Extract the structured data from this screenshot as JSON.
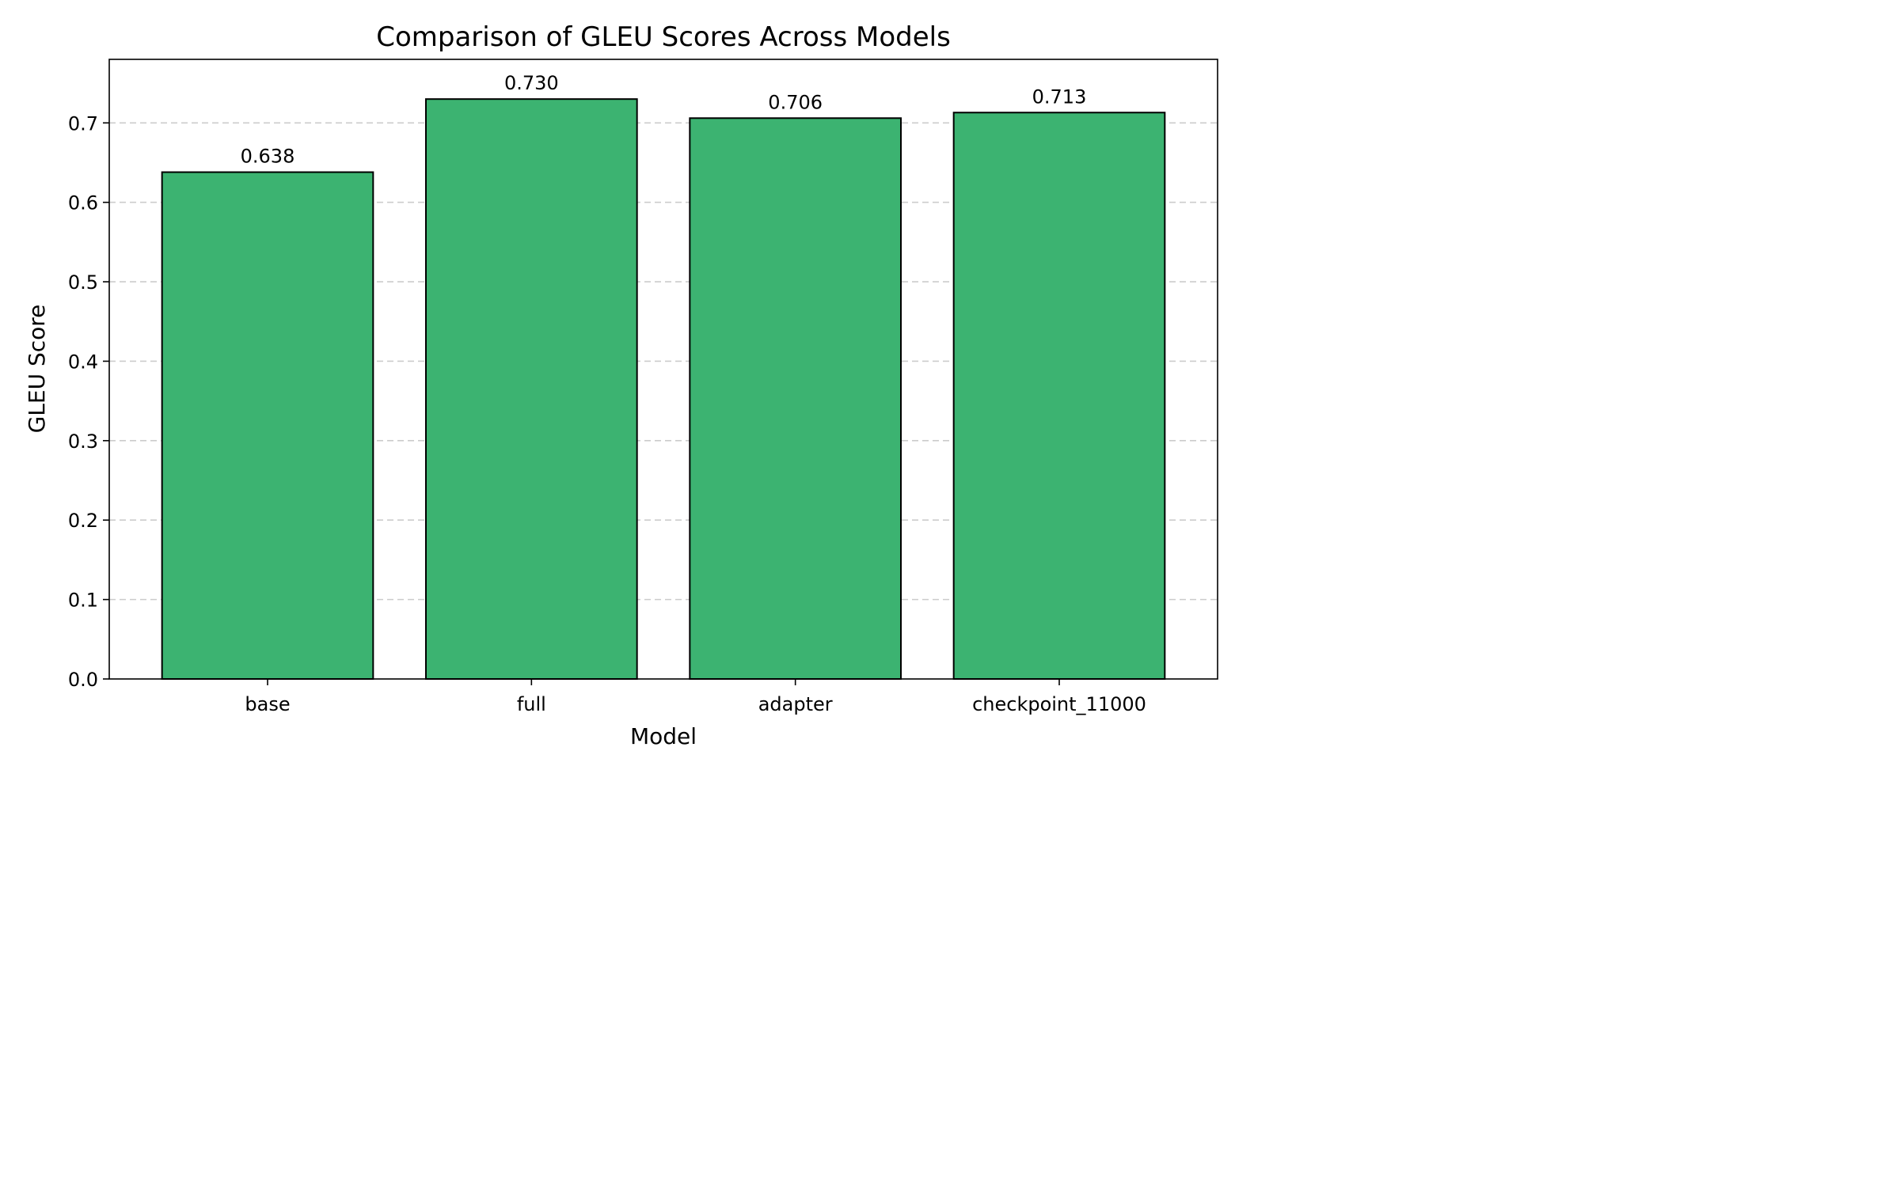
{
  "chart_data": {
    "type": "bar",
    "title": "Comparison of GLEU Scores Across Models",
    "xlabel": "Model",
    "ylabel": "GLEU Score",
    "categories": [
      "base",
      "full",
      "adapter",
      "checkpoint_11000"
    ],
    "values": [
      0.638,
      0.73,
      0.706,
      0.713
    ],
    "value_labels": [
      "0.638",
      "0.730",
      "0.706",
      "0.713"
    ],
    "ylim": [
      0,
      0.78
    ],
    "yticks": [
      0.0,
      0.1,
      0.2,
      0.3,
      0.4,
      0.5,
      0.6,
      0.7
    ],
    "ytick_labels": [
      "0.0",
      "0.1",
      "0.2",
      "0.3",
      "0.4",
      "0.5",
      "0.6",
      "0.7"
    ],
    "grid": "y dashed",
    "colors": {
      "bar_fill": "#3cb371",
      "bar_edge": "#000000",
      "grid": "#cccccc"
    }
  }
}
